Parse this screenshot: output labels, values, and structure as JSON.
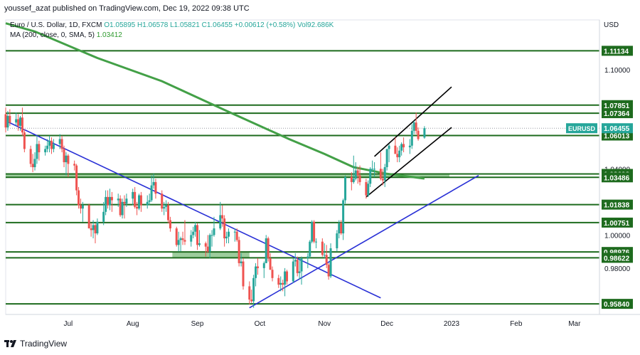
{
  "header": "youssef_azat published on TradingView.com, Dec 19, 2022 09:38 UTC",
  "legend": {
    "symbol": "Euro / U.S. Dollar, 1D, FXCM",
    "ohlc": "O1.05895  H1.06578  L1.05821  C1.06455  +0.00612 (+0.58%)",
    "vol": "Vol92.686K",
    "ma_label": "MA (200, close, 0, SMA, 5)",
    "ma_value": "1.03412"
  },
  "footer": {
    "brand": "TradingView"
  },
  "colors": {
    "up": "#26a69a",
    "down": "#ef5350",
    "hline": "#1e6b1e",
    "ma": "#43a047",
    "trend": "#2930d6",
    "channel": "#000000",
    "zone": "#8bc48b",
    "tag": "#1e6b1e"
  },
  "chart_data": {
    "type": "candlestick",
    "symbol": "EURUSD",
    "currency": "USD",
    "timeframe": "1D",
    "y_ticks": [
      1.1,
      1.04,
      1.0,
      0.98
    ],
    "x_ticks": [
      "Jul",
      "Aug",
      "Sep",
      "Oct",
      "Nov",
      "Dec",
      "2023",
      "Feb",
      "Mar"
    ],
    "ylim": [
      0.952,
      1.13
    ],
    "horizontal_levels": [
      1.11134,
      1.07851,
      1.07364,
      1.06013,
      1.03693,
      1.03486,
      1.01838,
      1.00751,
      0.98976,
      0.98622,
      0.9584
    ],
    "price_labels": [
      {
        "text": "1.11134",
        "value": 1.11134
      },
      {
        "text": "1.07851",
        "value": 1.07851
      },
      {
        "text": "1.07364",
        "value": 1.07364
      },
      {
        "text": "1.06013",
        "value": 1.06013
      },
      {
        "text": "1.03693",
        "value": 1.03693
      },
      {
        "text": "1.03486",
        "value": 1.03486
      },
      {
        "text": "1.01838",
        "value": 1.01838
      },
      {
        "text": "1.00751",
        "value": 1.00751
      },
      {
        "text": "0.98976",
        "value": 0.98976
      },
      {
        "text": "0.98622",
        "value": 0.98622
      },
      {
        "text": "0.95840",
        "value": 0.9584
      }
    ],
    "last_price": {
      "label": "EURUSD",
      "value": 1.06455
    },
    "zones": [
      {
        "from": 1.035,
        "to": 1.0368,
        "start": "Jun 01",
        "end": "2022-12-31"
      },
      {
        "from": 0.9862,
        "to": 0.9897,
        "start": "2022-08-20",
        "end": "2022-09-26"
      }
    ],
    "ma200": [
      [
        "Jun 01",
        1.128
      ],
      [
        "2022-06-15",
        1.123
      ],
      [
        "2022-07-15",
        1.107
      ],
      [
        "2022-08-15",
        1.093
      ],
      [
        "2022-09-15",
        1.075
      ],
      [
        "2022-10-15",
        1.058
      ],
      [
        "2022-11-01",
        1.049
      ],
      [
        "2022-11-15",
        1.041
      ],
      [
        "2022-12-01",
        1.037
      ],
      [
        "2022-12-19",
        1.0341
      ]
    ],
    "trendlines": [
      {
        "name": "descending",
        "from": [
          "Jun 01",
          1.069
        ],
        "to": [
          "2022-11-28",
          0.962
        ]
      },
      {
        "name": "ascending",
        "from": [
          "2022-09-26",
          0.956
        ],
        "to": [
          "2023-01-14",
          1.036
        ]
      }
    ],
    "channel": [
      {
        "from": [
          "2022-11-21",
          1.023
        ],
        "to": [
          "2023-01-01",
          1.065
        ]
      },
      {
        "from": [
          "2022-11-25",
          1.0475
        ],
        "to": [
          "2023-01-01",
          1.0895
        ]
      }
    ],
    "candles": [
      [
        "Jun 01",
        1.073,
        1.077,
        1.062,
        1.065
      ],
      [
        "Jun 02",
        1.065,
        1.075,
        1.063,
        1.072
      ],
      [
        "Jun 03",
        1.072,
        1.076,
        1.066,
        1.068
      ],
      [
        "Jun 06",
        1.068,
        1.074,
        1.066,
        1.07
      ],
      [
        "Jun 07",
        1.07,
        1.073,
        1.063,
        1.066
      ],
      [
        "Jun 08",
        1.066,
        1.072,
        1.063,
        1.071
      ],
      [
        "Jun 09",
        1.071,
        1.077,
        1.06,
        1.062
      ],
      [
        "Jun 10",
        1.062,
        1.064,
        1.05,
        1.052
      ],
      [
        "Jun 13",
        1.052,
        1.054,
        1.041,
        1.043
      ],
      [
        "Jun 14",
        1.043,
        1.049,
        1.038,
        1.041
      ],
      [
        "Jun 15",
        1.041,
        1.05,
        1.039,
        1.046
      ],
      [
        "Jun 16",
        1.046,
        1.06,
        1.043,
        1.055
      ],
      [
        "Jun 17",
        1.055,
        1.057,
        1.045,
        1.05
      ],
      [
        "Jun 20",
        1.05,
        1.054,
        1.048,
        1.052
      ],
      [
        "Jun 21",
        1.052,
        1.058,
        1.05,
        1.054
      ],
      [
        "Jun 22",
        1.054,
        1.06,
        1.05,
        1.057
      ],
      [
        "Jun 23",
        1.057,
        1.059,
        1.049,
        1.052
      ],
      [
        "Jun 24",
        1.052,
        1.058,
        1.05,
        1.055
      ],
      [
        "Jun 27",
        1.055,
        1.061,
        1.052,
        1.058
      ],
      [
        "Jun 28",
        1.058,
        1.06,
        1.05,
        1.052
      ],
      [
        "Jun 29",
        1.052,
        1.054,
        1.041,
        1.044
      ],
      [
        "Jun 30",
        1.044,
        1.05,
        1.036,
        1.048
      ],
      [
        "Jul 01",
        1.048,
        1.049,
        1.035,
        1.043
      ],
      [
        "Jul 04",
        1.043,
        1.045,
        1.039,
        1.042
      ],
      [
        "Jul 05",
        1.042,
        1.043,
        1.024,
        1.027
      ],
      [
        "Jul 06",
        1.027,
        1.029,
        1.016,
        1.018
      ],
      [
        "Jul 07",
        1.018,
        1.022,
        1.013,
        1.016
      ],
      [
        "Jul 08",
        1.016,
        1.02,
        1.008,
        1.018
      ],
      [
        "Jul 11",
        1.018,
        1.019,
        1.004,
        1.004
      ],
      [
        "Jul 12",
        1.004,
        1.007,
        0.999,
        1.003
      ],
      [
        "Jul 13",
        1.003,
        1.009,
        0.998,
        1.006
      ],
      [
        "Jul 14",
        1.006,
        1.007,
        0.995,
        1.001
      ],
      [
        "Jul 15",
        1.001,
        1.01,
        1.0,
        1.008
      ],
      [
        "Jul 18",
        1.008,
        1.02,
        1.006,
        1.014
      ],
      [
        "Jul 19",
        1.014,
        1.027,
        1.012,
        1.023
      ],
      [
        "Jul 20",
        1.023,
        1.027,
        1.016,
        1.018
      ],
      [
        "Jul 21",
        1.018,
        1.028,
        1.015,
        1.023
      ],
      [
        "Jul 22",
        1.023,
        1.026,
        1.014,
        1.021
      ],
      [
        "Jul 25",
        1.021,
        1.025,
        1.017,
        1.022
      ],
      [
        "Jul 26",
        1.022,
        1.024,
        1.011,
        1.012
      ],
      [
        "Jul 27",
        1.012,
        1.022,
        1.01,
        1.02
      ],
      [
        "Jul 28",
        1.02,
        1.024,
        1.01,
        1.019
      ],
      [
        "Jul 29",
        1.019,
        1.025,
        1.017,
        1.022
      ],
      [
        "Aug 01",
        1.022,
        1.028,
        1.018,
        1.026
      ],
      [
        "Aug 02",
        1.026,
        1.029,
        1.016,
        1.017
      ],
      [
        "Aug 03",
        1.017,
        1.02,
        1.012,
        1.016
      ],
      [
        "Aug 04",
        1.016,
        1.025,
        1.015,
        1.024
      ],
      [
        "Aug 05",
        1.024,
        1.026,
        1.014,
        1.018
      ],
      [
        "Aug 08",
        1.018,
        1.024,
        1.016,
        1.02
      ],
      [
        "Aug 09",
        1.02,
        1.025,
        1.018,
        1.021
      ],
      [
        "Aug 10",
        1.021,
        1.036,
        1.02,
        1.03
      ],
      [
        "Aug 11",
        1.03,
        1.037,
        1.028,
        1.032
      ],
      [
        "Aug 12",
        1.032,
        1.034,
        1.022,
        1.025
      ],
      [
        "Aug 15",
        1.025,
        1.027,
        1.014,
        1.016
      ],
      [
        "Aug 16",
        1.016,
        1.02,
        1.012,
        1.017
      ],
      [
        "Aug 17",
        1.017,
        1.021,
        1.014,
        1.018
      ],
      [
        "Aug 18",
        1.018,
        1.02,
        1.007,
        1.009
      ],
      [
        "Aug 19",
        1.009,
        1.011,
        1.002,
        1.004
      ],
      [
        "Aug 22",
        1.004,
        1.005,
        0.993,
        0.994
      ],
      [
        "Aug 23",
        0.994,
        1.002,
        0.99,
        0.997
      ],
      [
        "Aug 24",
        0.997,
        0.999,
        0.99,
        0.998
      ],
      [
        "Aug 25",
        0.998,
        1.002,
        0.994,
        0.997
      ],
      [
        "Aug 26",
        0.997,
        1.009,
        0.994,
        0.996
      ],
      [
        "Aug 29",
        0.996,
        1.003,
        0.993,
        1.0
      ],
      [
        "Aug 30",
        1.0,
        1.005,
        0.998,
        1.002
      ],
      [
        "Aug 31",
        1.002,
        1.008,
        0.999,
        1.006
      ],
      [
        "Sep 01",
        1.006,
        1.007,
        0.991,
        0.994
      ],
      [
        "Sep 02",
        0.994,
        1.003,
        0.993,
        0.995
      ],
      [
        "Sep 05",
        0.995,
        0.996,
        0.987,
        0.993
      ],
      [
        "Sep 06",
        0.993,
        1.0,
        0.989,
        0.99
      ],
      [
        "Sep 07",
        0.99,
        1.001,
        0.986,
        1.0
      ],
      [
        "Sep 08",
        1.0,
        1.003,
        0.993,
        1.0
      ],
      [
        "Sep 09",
        1.0,
        1.011,
        0.999,
        1.004
      ],
      [
        "Sep 12",
        1.004,
        1.02,
        1.003,
        1.012
      ],
      [
        "Sep 13",
        1.012,
        1.018,
        1.005,
        1.01
      ],
      [
        "Sep 14",
        1.01,
        1.012,
        0.993,
        0.998
      ],
      [
        "Sep 15",
        0.998,
        1.002,
        0.995,
        0.999
      ],
      [
        "Sep 16",
        0.999,
        1.004,
        0.995,
        1.002
      ],
      [
        "Sep 19",
        1.002,
        1.004,
        0.996,
        1.002
      ],
      [
        "Sep 20",
        1.002,
        1.004,
        0.996,
        0.997
      ],
      [
        "Sep 21",
        0.997,
        0.999,
        0.981,
        0.983
      ],
      [
        "Sep 22",
        0.983,
        0.989,
        0.981,
        0.984
      ],
      [
        "Sep 23",
        0.984,
        0.986,
        0.967,
        0.969
      ],
      [
        "Sep 26",
        0.969,
        0.972,
        0.958,
        0.961
      ],
      [
        "Sep 27",
        0.961,
        0.967,
        0.959,
        0.96
      ],
      [
        "Sep 28",
        0.96,
        0.976,
        0.956,
        0.974
      ],
      [
        "Sep 29",
        0.974,
        0.983,
        0.969,
        0.981
      ],
      [
        "Sep 30",
        0.981,
        0.986,
        0.976,
        0.98
      ],
      [
        "Oct 03",
        0.98,
        0.984,
        0.974,
        0.983
      ],
      [
        "Oct 04",
        0.983,
        1.0,
        0.983,
        0.998
      ],
      [
        "Oct 05",
        0.998,
        0.999,
        0.984,
        0.986
      ],
      [
        "Oct 06",
        0.986,
        0.989,
        0.979,
        0.979
      ],
      [
        "Oct 07",
        0.979,
        0.981,
        0.972,
        0.974
      ],
      [
        "Oct 10",
        0.974,
        0.976,
        0.968,
        0.97
      ],
      [
        "Oct 11",
        0.97,
        0.975,
        0.966,
        0.971
      ],
      [
        "Oct 12",
        0.971,
        0.973,
        0.966,
        0.97
      ],
      [
        "Oct 13",
        0.97,
        0.98,
        0.963,
        0.978
      ],
      [
        "Oct 14",
        0.978,
        0.979,
        0.97,
        0.972
      ],
      [
        "Oct 17",
        0.972,
        0.986,
        0.971,
        0.984
      ],
      [
        "Oct 18",
        0.984,
        0.989,
        0.981,
        0.985
      ],
      [
        "Oct 19",
        0.985,
        0.987,
        0.975,
        0.977
      ],
      [
        "Oct 20",
        0.977,
        0.986,
        0.973,
        0.978
      ],
      [
        "Oct 21",
        0.978,
        0.987,
        0.97,
        0.986
      ],
      [
        "Oct 24",
        0.986,
        0.989,
        0.98,
        0.987
      ],
      [
        "Oct 25",
        0.987,
        0.997,
        0.986,
        0.996
      ],
      [
        "Oct 26",
        0.996,
        1.009,
        0.995,
        1.008
      ],
      [
        "Oct 27",
        1.008,
        1.009,
        0.995,
        0.996
      ],
      [
        "Oct 28",
        0.996,
        0.998,
        0.992,
        0.996
      ],
      [
        "Oct 31",
        0.996,
        0.998,
        0.987,
        0.988
      ],
      [
        "Nov 01",
        0.988,
        0.995,
        0.986,
        0.988
      ],
      [
        "Nov 02",
        0.988,
        0.994,
        0.98,
        0.982
      ],
      [
        "Nov 03",
        0.982,
        0.983,
        0.973,
        0.975
      ],
      [
        "Nov 04",
        0.975,
        0.995,
        0.974,
        0.992
      ],
      [
        "Nov 07",
        0.992,
        1.003,
        0.99,
        1.001
      ],
      [
        "Nov 08",
        1.001,
        1.009,
        0.998,
        1.007
      ],
      [
        "Nov 09",
        1.007,
        1.009,
        1.0,
        1.001
      ],
      [
        "Nov 10",
        1.001,
        1.022,
        0.997,
        1.021
      ],
      [
        "Nov 11",
        1.021,
        1.036,
        1.019,
        1.035
      ],
      [
        "Nov 14",
        1.035,
        1.038,
        1.027,
        1.032
      ],
      [
        "Nov 15",
        1.032,
        1.048,
        1.031,
        1.034
      ],
      [
        "Nov 16",
        1.034,
        1.044,
        1.033,
        1.039
      ],
      [
        "Nov 17",
        1.039,
        1.041,
        1.031,
        1.036
      ],
      [
        "Nov 18",
        1.036,
        1.042,
        1.03,
        1.032
      ],
      [
        "Nov 21",
        1.032,
        1.034,
        1.022,
        1.024
      ],
      [
        "Nov 22",
        1.024,
        1.033,
        1.023,
        1.031
      ],
      [
        "Nov 23",
        1.031,
        1.041,
        1.029,
        1.04
      ],
      [
        "Nov 24",
        1.04,
        1.045,
        1.038,
        1.04
      ],
      [
        "Nov 25",
        1.04,
        1.044,
        1.035,
        1.04
      ],
      [
        "Nov 28",
        1.04,
        1.05,
        1.033,
        1.034
      ],
      [
        "Nov 29",
        1.034,
        1.04,
        1.03,
        1.033
      ],
      [
        "Nov 30",
        1.033,
        1.043,
        1.029,
        1.041
      ],
      [
        "Dec 01",
        1.041,
        1.052,
        1.039,
        1.052
      ],
      [
        "Dec 02",
        1.052,
        1.055,
        1.044,
        1.054
      ],
      [
        "Dec 05",
        1.054,
        1.059,
        1.049,
        1.049
      ],
      [
        "Dec 06",
        1.049,
        1.053,
        1.044,
        1.047
      ],
      [
        "Dec 07",
        1.047,
        1.054,
        1.044,
        1.051
      ],
      [
        "Dec 08",
        1.051,
        1.056,
        1.048,
        1.055
      ],
      [
        "Dec 09",
        1.055,
        1.059,
        1.05,
        1.053
      ],
      [
        "Dec 12",
        1.053,
        1.058,
        1.049,
        1.054
      ],
      [
        "Dec 13",
        1.054,
        1.067,
        1.052,
        1.063
      ],
      [
        "Dec 14",
        1.063,
        1.069,
        1.061,
        1.068
      ],
      [
        "Dec 15",
        1.068,
        1.074,
        1.061,
        1.063
      ],
      [
        "Dec 16",
        1.063,
        1.065,
        1.057,
        1.058
      ],
      [
        "Dec 19",
        1.0589,
        1.0658,
        1.0582,
        1.0646
      ]
    ]
  }
}
